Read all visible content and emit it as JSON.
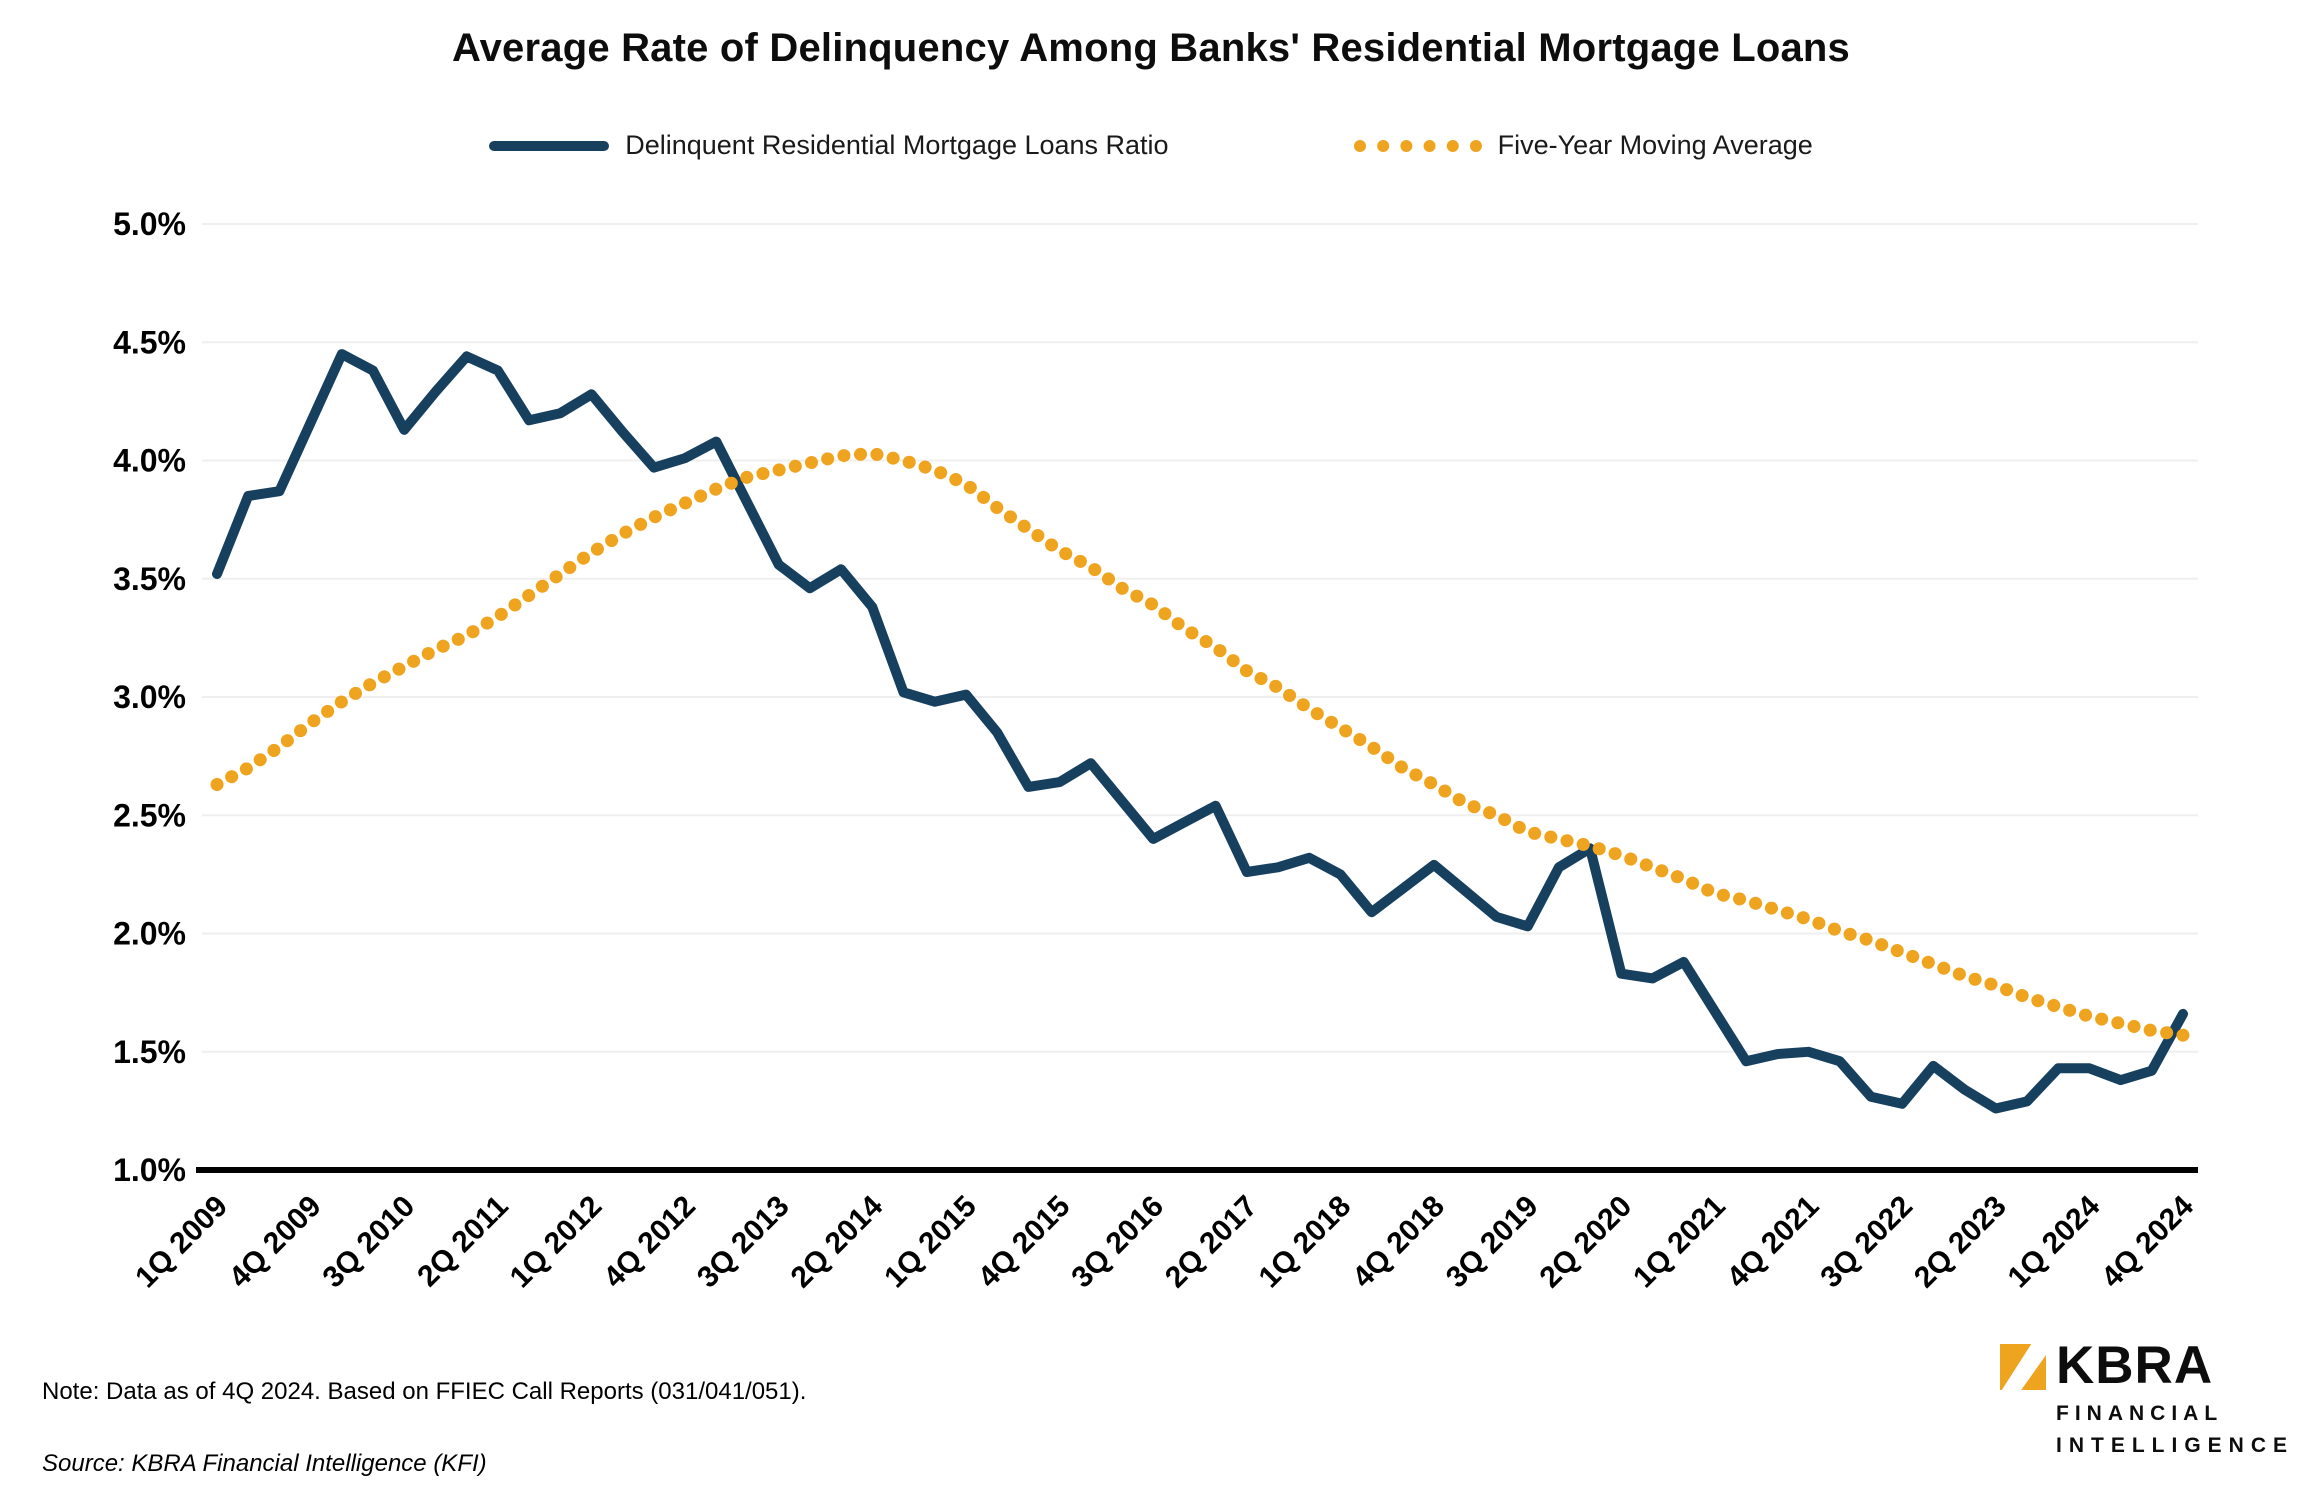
{
  "title": "Average Rate of Delinquency Among Banks' Residential Mortgage Loans",
  "legend": {
    "series1_label": "Delinquent Residential Mortgage Loans Ratio",
    "series2_label": "Five-Year Moving Average"
  },
  "note": "Note: Data as of 4Q 2024. Based on FFIEC Call Reports (031/041/051).",
  "source": "Source: KBRA Financial Intelligence (KFI)",
  "logo": {
    "name": "KBRA",
    "line1": "FINANCIAL",
    "line2": "INTELLIGENCE"
  },
  "colors": {
    "navy": "#17405F",
    "gold": "#EFA41F",
    "grid": "#EFEFEF",
    "axis": "#000000",
    "text": "#000000"
  },
  "chart_data": {
    "type": "line",
    "title": "Average Rate of Delinquency Among Banks' Residential Mortgage Loans",
    "xlabel": "",
    "ylabel": "",
    "ylim": [
      1.0,
      5.0
    ],
    "grid": "horizontal-light",
    "legend_position": "top",
    "x_tick_every": 3,
    "y_ticks": [
      "5.0%",
      "4.5%",
      "4.0%",
      "3.5%",
      "3.0%",
      "2.5%",
      "2.0%",
      "1.5%",
      "1.0%"
    ],
    "y_tick_values": [
      5.0,
      4.5,
      4.0,
      3.5,
      3.0,
      2.5,
      2.0,
      1.5,
      1.0
    ],
    "categories": [
      "1Q 2009",
      "2Q 2009",
      "3Q 2009",
      "4Q 2009",
      "1Q 2010",
      "2Q 2010",
      "3Q 2010",
      "4Q 2010",
      "1Q 2011",
      "2Q 2011",
      "3Q 2011",
      "4Q 2011",
      "1Q 2012",
      "2Q 2012",
      "3Q 2012",
      "4Q 2012",
      "1Q 2013",
      "2Q 2013",
      "3Q 2013",
      "4Q 2013",
      "1Q 2014",
      "2Q 2014",
      "3Q 2014",
      "4Q 2014",
      "1Q 2015",
      "2Q 2015",
      "3Q 2015",
      "4Q 2015",
      "1Q 2016",
      "2Q 2016",
      "3Q 2016",
      "4Q 2016",
      "1Q 2017",
      "2Q 2017",
      "3Q 2017",
      "4Q 2017",
      "1Q 2018",
      "2Q 2018",
      "3Q 2018",
      "4Q 2018",
      "1Q 2019",
      "2Q 2019",
      "3Q 2019",
      "4Q 2019",
      "1Q 2020",
      "2Q 2020",
      "3Q 2020",
      "4Q 2020",
      "1Q 2021",
      "2Q 2021",
      "3Q 2021",
      "4Q 2021",
      "1Q 2022",
      "2Q 2022",
      "3Q 2022",
      "4Q 2022",
      "1Q 2023",
      "2Q 2023",
      "3Q 2023",
      "4Q 2023",
      "1Q 2024",
      "2Q 2024",
      "3Q 2024",
      "4Q 2024"
    ],
    "series": [
      {
        "name": "Delinquent Residential Mortgage Loans Ratio",
        "style": "solid",
        "color_key": "navy",
        "values": [
          3.52,
          3.85,
          3.87,
          4.16,
          4.45,
          4.38,
          4.13,
          4.29,
          4.44,
          4.38,
          4.17,
          4.2,
          4.28,
          4.12,
          3.97,
          4.01,
          4.08,
          3.82,
          3.56,
          3.46,
          3.54,
          3.38,
          3.02,
          2.98,
          3.01,
          2.85,
          2.62,
          2.64,
          2.72,
          2.56,
          2.4,
          2.47,
          2.54,
          2.26,
          2.28,
          2.32,
          2.25,
          2.09,
          2.19,
          2.29,
          2.18,
          2.07,
          2.03,
          2.28,
          2.36,
          1.83,
          1.81,
          1.88,
          1.67,
          1.46,
          1.49,
          1.5,
          1.46,
          1.31,
          1.28,
          1.44,
          1.34,
          1.26,
          1.29,
          1.43,
          1.43,
          1.38,
          1.42,
          1.66
        ]
      },
      {
        "name": "Five-Year Moving Average",
        "style": "dotted",
        "color_key": "gold",
        "values": [
          2.63,
          2.7,
          2.79,
          2.89,
          2.98,
          3.06,
          3.13,
          3.2,
          3.26,
          3.34,
          3.43,
          3.52,
          3.61,
          3.69,
          3.76,
          3.82,
          3.88,
          3.93,
          3.96,
          3.99,
          4.02,
          4.03,
          4.0,
          3.96,
          3.9,
          3.8,
          3.71,
          3.62,
          3.55,
          3.46,
          3.39,
          3.29,
          3.21,
          3.11,
          3.04,
          2.95,
          2.87,
          2.79,
          2.7,
          2.63,
          2.55,
          2.5,
          2.43,
          2.4,
          2.37,
          2.33,
          2.28,
          2.23,
          2.17,
          2.14,
          2.1,
          2.06,
          2.01,
          1.97,
          1.92,
          1.87,
          1.82,
          1.78,
          1.73,
          1.69,
          1.65,
          1.62,
          1.59,
          1.57
        ]
      }
    ]
  }
}
